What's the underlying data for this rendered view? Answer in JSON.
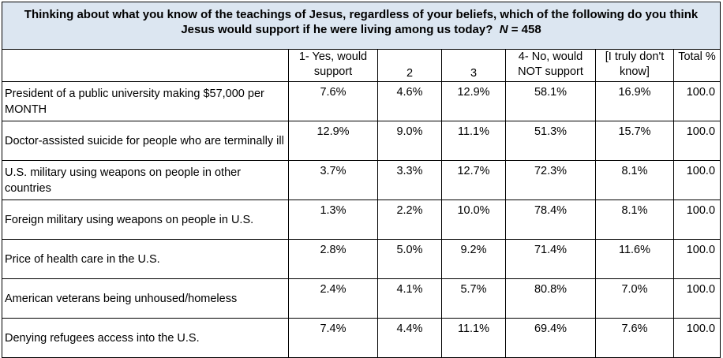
{
  "header": {
    "title": "Thinking about what you know of the teachings of Jesus, regardless of your beliefs, which of the following do you think Jesus would support if he were living among us today?",
    "n_label": "N",
    "n_value": "= 458"
  },
  "table": {
    "columns": [
      "1- Yes, would support",
      "2",
      "3",
      "4- No, would NOT support",
      "[I truly don't know]",
      "Total %"
    ],
    "rows": [
      [
        "President of a public university making $57,000 per MONTH",
        "7.6%",
        "4.6%",
        "12.9%",
        "58.1%",
        "16.9%",
        "100.0"
      ],
      [
        "Doctor-assisted suicide for people who are terminally ill",
        "12.9%",
        "9.0%",
        "11.1%",
        "51.3%",
        "15.7%",
        "100.0"
      ],
      [
        "U.S. military using weapons on people in other countries",
        "3.7%",
        "3.3%",
        "12.7%",
        "72.3%",
        "8.1%",
        "100.0"
      ],
      [
        "Foreign military using weapons on people in U.S.",
        "1.3%",
        "2.2%",
        "10.0%",
        "78.4%",
        "8.1%",
        "100.0"
      ],
      [
        "Price of health care in the U.S.",
        "2.8%",
        "5.0%",
        "9.2%",
        "71.4%",
        "11.6%",
        "100.0"
      ],
      [
        "American veterans being unhoused/homeless",
        "2.4%",
        "4.1%",
        "5.7%",
        "80.8%",
        "7.0%",
        "100.0"
      ],
      [
        "Denying refugees access into the U.S.",
        "7.4%",
        "4.4%",
        "11.1%",
        "69.4%",
        "7.6%",
        "100.0"
      ]
    ]
  }
}
